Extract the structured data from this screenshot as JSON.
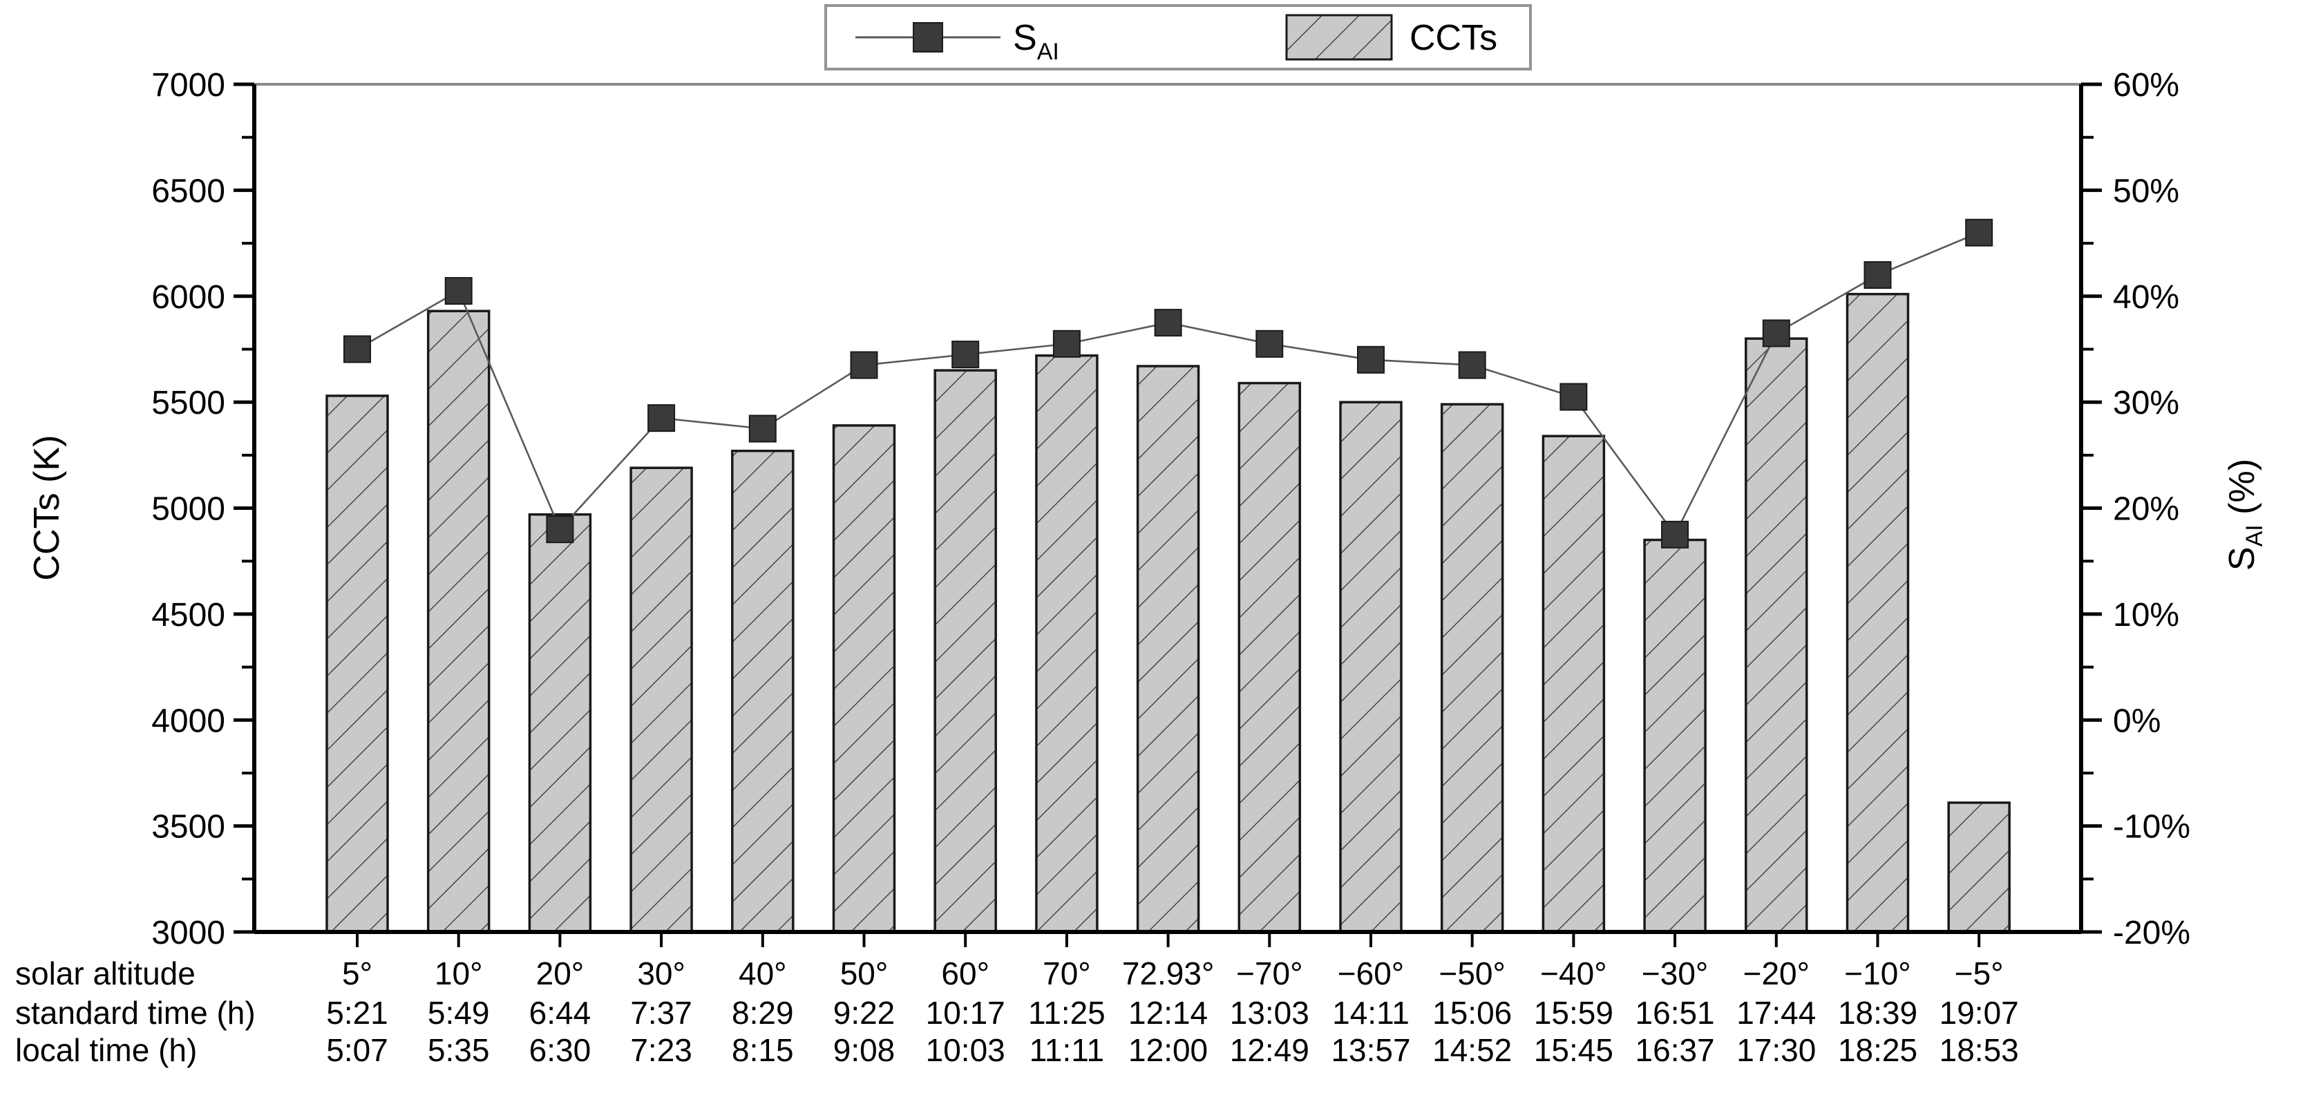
{
  "chart_data": {
    "type": "bar+line dual-axis",
    "title": "",
    "legend_position": "top-center",
    "grid": false,
    "legend": {
      "sai": {
        "main": "S",
        "sub": "AI"
      },
      "ccts": "CCTs"
    },
    "left_axis": {
      "label": "CCTs (K)",
      "min": 3000,
      "max": 7000,
      "major_step": 500,
      "minor_step": 250,
      "tick_labels": [
        "7000",
        "6500",
        "6000",
        "5500",
        "5000",
        "4500",
        "4000",
        "3500",
        "3000"
      ]
    },
    "right_axis": {
      "label_main": "S",
      "label_sub": "AI",
      "label_rest": " (%)",
      "min": -20,
      "max": 60,
      "major_step": 10,
      "minor_step": 5,
      "tick_labels": [
        "60%",
        "50%",
        "40%",
        "30%",
        "20%",
        "10%",
        "0%",
        "-10%",
        "-20%"
      ]
    },
    "row_headers": [
      "solar altitude",
      "standard time (h)",
      "local time (h)"
    ],
    "categories": [
      "5°",
      "10°",
      "20°",
      "30°",
      "40°",
      "50°",
      "60°",
      "70°",
      "72.93°",
      "−70°",
      "−60°",
      "−50°",
      "−40°",
      "−30°",
      "−20°",
      "−10°",
      "−5°"
    ],
    "rows": {
      "standard_time": [
        "5:21",
        "5:49",
        "6:44",
        "7:37",
        "8:29",
        "9:22",
        "10:17",
        "11:25",
        "12:14",
        "13:03",
        "14:11",
        "15:06",
        "15:59",
        "16:51",
        "17:44",
        "18:39",
        "19:07"
      ],
      "local_time": [
        "5:07",
        "5:35",
        "6:30",
        "7:23",
        "8:15",
        "9:08",
        "10:03",
        "11:11",
        "12:00",
        "12:49",
        "13:57",
        "14:52",
        "15:45",
        "16:37",
        "17:30",
        "18:25",
        "18:53"
      ]
    },
    "series": [
      {
        "name": "SAI",
        "display": "S_AI",
        "type": "line",
        "axis": "right",
        "unit": "%",
        "marker": "square",
        "values": [
          35,
          40.5,
          18,
          28.5,
          27.5,
          33.5,
          34.5,
          35.5,
          37.5,
          35.5,
          34,
          33.5,
          30.5,
          17.5,
          36.5,
          42,
          46
        ]
      },
      {
        "name": "CCTs",
        "type": "bar",
        "axis": "left",
        "unit": "K",
        "values": [
          5530,
          5930,
          4970,
          5190,
          5270,
          5390,
          5650,
          5720,
          5670,
          5590,
          5500,
          5490,
          5340,
          4850,
          5800,
          6010,
          3610
        ]
      }
    ],
    "colors": {
      "bar_fill": "#c9c9c9",
      "bar_border": "#1a1a1a",
      "hatch_line": "#333333",
      "marker": "#3a3a3a",
      "line": "#5a5a5a",
      "axis": "#000000",
      "top_border": "#8a8a8a",
      "legend_border": "#949494",
      "background": "#ffffff"
    }
  }
}
